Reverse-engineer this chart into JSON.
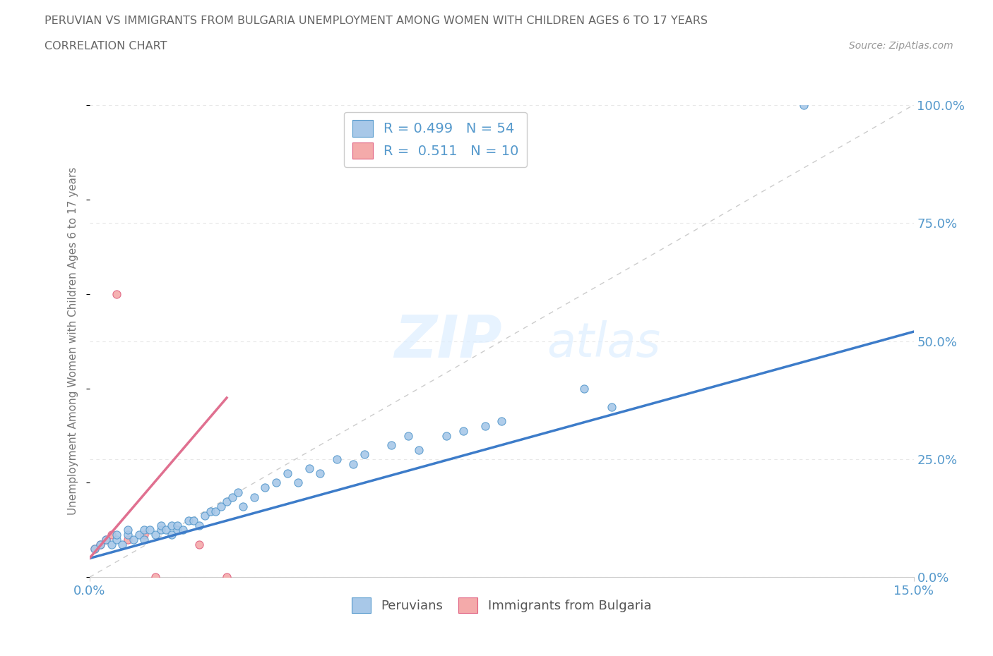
{
  "title_line1": "PERUVIAN VS IMMIGRANTS FROM BULGARIA UNEMPLOYMENT AMONG WOMEN WITH CHILDREN AGES 6 TO 17 YEARS",
  "title_line2": "CORRELATION CHART",
  "source_text": "Source: ZipAtlas.com",
  "xmin": 0.0,
  "xmax": 0.15,
  "ymin": 0.0,
  "ymax": 1.0,
  "ytick_positions": [
    0.0,
    0.25,
    0.5,
    0.75,
    1.0
  ],
  "ytick_labels": [
    "0.0%",
    "25.0%",
    "50.0%",
    "75.0%",
    "100.0%"
  ],
  "xtick_positions": [
    0.0,
    0.15
  ],
  "xtick_labels": [
    "0.0%",
    "15.0%"
  ],
  "peruvian_R": "0.499",
  "peruvian_N": "54",
  "bulgaria_R": "0.511",
  "bulgaria_N": "10",
  "peruvian_color": "#A8C8E8",
  "peruvian_edge": "#5599CC",
  "bulgaria_color": "#F4AAAA",
  "bulgaria_edge": "#E06080",
  "trend_peruvian_color": "#3D7CC9",
  "trend_bulgaria_color": "#E07090",
  "diagonal_color": "#CCCCCC",
  "background_color": "#FFFFFF",
  "grid_color": "#E8E8E8",
  "axis_label_color": "#777777",
  "tick_label_color": "#5599CC",
  "title_color": "#666666",
  "source_color": "#999999",
  "legend_edge_color": "#CCCCCC",
  "bottom_label_color": "#555555",
  "legend_label_peruvian": "Peruvians",
  "legend_label_bulgaria": "Immigrants from Bulgaria",
  "peruvians_x": [
    0.001,
    0.002,
    0.003,
    0.004,
    0.005,
    0.005,
    0.006,
    0.007,
    0.007,
    0.008,
    0.009,
    0.01,
    0.01,
    0.011,
    0.012,
    0.013,
    0.013,
    0.014,
    0.015,
    0.015,
    0.016,
    0.016,
    0.017,
    0.018,
    0.019,
    0.02,
    0.021,
    0.022,
    0.023,
    0.024,
    0.025,
    0.026,
    0.027,
    0.028,
    0.03,
    0.032,
    0.034,
    0.036,
    0.038,
    0.04,
    0.042,
    0.045,
    0.048,
    0.05,
    0.055,
    0.058,
    0.06,
    0.065,
    0.068,
    0.072,
    0.075,
    0.09,
    0.095,
    0.13
  ],
  "peruvians_y": [
    0.06,
    0.07,
    0.08,
    0.07,
    0.08,
    0.09,
    0.07,
    0.09,
    0.1,
    0.08,
    0.09,
    0.1,
    0.08,
    0.1,
    0.09,
    0.1,
    0.11,
    0.1,
    0.11,
    0.09,
    0.1,
    0.11,
    0.1,
    0.12,
    0.12,
    0.11,
    0.13,
    0.14,
    0.14,
    0.15,
    0.16,
    0.17,
    0.18,
    0.15,
    0.17,
    0.19,
    0.2,
    0.22,
    0.2,
    0.23,
    0.22,
    0.25,
    0.24,
    0.26,
    0.28,
    0.3,
    0.27,
    0.3,
    0.31,
    0.32,
    0.33,
    0.4,
    0.36,
    1.0
  ],
  "bulgaria_x": [
    0.001,
    0.002,
    0.003,
    0.004,
    0.005,
    0.007,
    0.01,
    0.012,
    0.02,
    0.025
  ],
  "bulgaria_y": [
    0.06,
    0.07,
    0.08,
    0.09,
    0.6,
    0.08,
    0.09,
    0.0,
    0.07,
    0.0
  ],
  "trend_peru_x0": 0.0,
  "trend_peru_y0": 0.04,
  "trend_peru_x1": 0.15,
  "trend_peru_y1": 0.52,
  "trend_bulg_x0": 0.0,
  "trend_bulg_y0": 0.04,
  "trend_bulg_x1": 0.025,
  "trend_bulg_y1": 0.38
}
